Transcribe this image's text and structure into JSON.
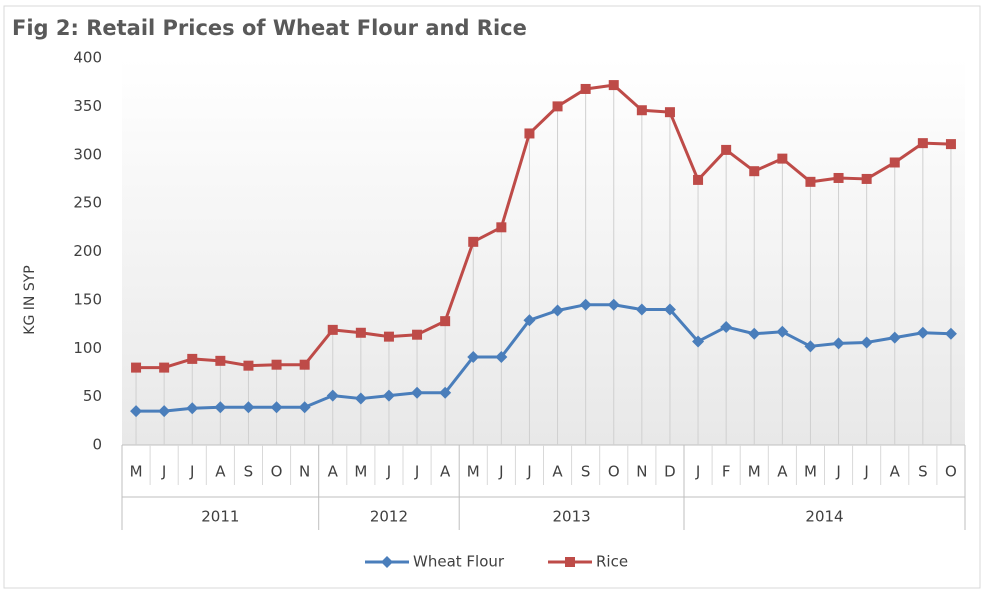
{
  "chart_data": {
    "type": "line",
    "title": "Fig 2: Retail Prices of Wheat Flour and Rice",
    "y_label": "KG IN SYP",
    "category_groups": [
      {
        "label": "2011",
        "categories": [
          "M",
          "J",
          "J",
          "A",
          "S",
          "O",
          "N"
        ]
      },
      {
        "label": "2012",
        "categories": [
          "A",
          "M",
          "J",
          "J",
          "A"
        ]
      },
      {
        "label": "2013",
        "categories": [
          "M",
          "J",
          "J",
          "A",
          "S",
          "O",
          "N",
          "D"
        ]
      },
      {
        "label": "2014",
        "categories": [
          "J",
          "F",
          "M",
          "A",
          "M",
          "J",
          "J",
          "A",
          "S",
          "O"
        ]
      }
    ],
    "series": [
      {
        "name": "Wheat Flour",
        "color": "#4a7ebb",
        "marker": "diamond",
        "values": [
          35,
          35,
          38,
          39,
          39,
          39,
          39,
          51,
          48,
          51,
          54,
          54,
          91,
          91,
          129,
          139,
          145,
          145,
          140,
          140,
          107,
          122,
          115,
          117,
          102,
          105,
          106,
          111,
          116,
          115
        ]
      },
      {
        "name": "Rice",
        "color": "#be4b48",
        "marker": "square",
        "values": [
          80,
          80,
          89,
          87,
          82,
          83,
          83,
          119,
          116,
          112,
          114,
          128,
          210,
          225,
          322,
          350,
          368,
          372,
          346,
          344,
          274,
          305,
          283,
          296,
          272,
          276,
          275,
          292,
          312,
          311
        ]
      }
    ],
    "ylim": [
      0,
      400
    ],
    "yticks": [
      0,
      50,
      100,
      150,
      200,
      250,
      300,
      350,
      400
    ],
    "drop_lines": true,
    "legend": "bottom"
  }
}
